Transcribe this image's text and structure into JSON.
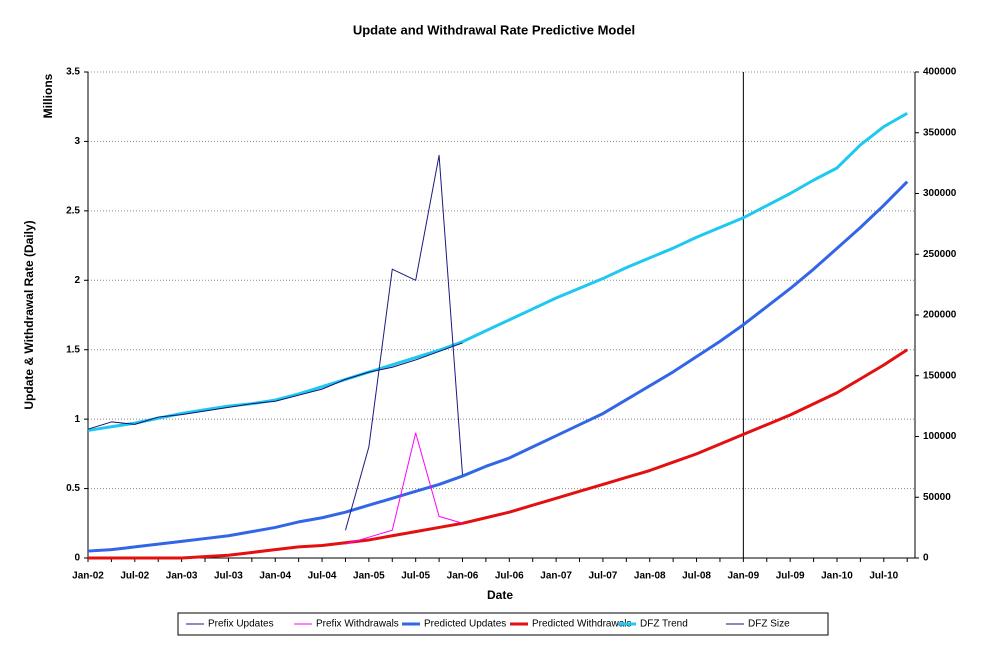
{
  "chart_data": {
    "type": "line",
    "title": "Update and Withdrawal Rate Predictive Model",
    "x_label": "Date",
    "y_label": "Update & Withdrawal Rate (Daily)",
    "y_unit_label": "Millions",
    "categories": [
      "Jan-02",
      null,
      "Jul-02",
      null,
      "Jan-03",
      null,
      "Jul-03",
      null,
      "Jan-04",
      null,
      "Jul-04",
      null,
      "Jan-05",
      null,
      "Jul-05",
      null,
      "Jan-06",
      null,
      "Jul-06",
      null,
      "Jan-07",
      null,
      "Jul-07",
      null,
      "Jan-08",
      null,
      "Jul-08",
      null,
      "Jan-09",
      null,
      "Jul-09",
      null,
      "Jan-10",
      null,
      "Jul-10",
      null
    ],
    "ylim": [
      0,
      3.5
    ],
    "yticks": [
      0,
      0.5,
      1,
      1.5,
      2,
      2.5,
      3,
      3.5
    ],
    "y2lim": [
      0,
      400000
    ],
    "y2ticks": [
      0,
      50000,
      100000,
      150000,
      200000,
      250000,
      300000,
      350000,
      400000
    ],
    "grid": true,
    "legend": "bottom",
    "vline_x": "Jan-09",
    "series": [
      {
        "name": "Prefix Updates",
        "color": "#1a1a80",
        "width": 1,
        "values": [
          null,
          null,
          null,
          null,
          null,
          null,
          null,
          null,
          null,
          null,
          null,
          0.2,
          0.8,
          2.08,
          2.0,
          2.9,
          0.6,
          null,
          null,
          null,
          null,
          null,
          null,
          null,
          null,
          null,
          null,
          null,
          null,
          null,
          null,
          null,
          null,
          null,
          null,
          null
        ]
      },
      {
        "name": "Prefix Withdrawals",
        "color": "#ff00ff",
        "width": 1,
        "values": [
          null,
          null,
          null,
          null,
          null,
          null,
          null,
          null,
          null,
          null,
          null,
          0.1,
          0.15,
          0.2,
          0.9,
          0.3,
          0.25,
          null,
          null,
          null,
          null,
          null,
          null,
          null,
          null,
          null,
          null,
          null,
          null,
          null,
          null,
          null,
          null,
          null,
          null,
          null
        ]
      },
      {
        "name": "Predicted Updates",
        "color": "#3366e6",
        "width": 3,
        "values": [
          0.05,
          0.06,
          0.08,
          0.1,
          0.12,
          0.14,
          0.16,
          0.19,
          0.22,
          0.26,
          0.29,
          0.33,
          0.38,
          0.43,
          0.48,
          0.53,
          0.59,
          0.66,
          0.72,
          0.8,
          0.88,
          0.96,
          1.04,
          1.14,
          1.24,
          1.34,
          1.45,
          1.56,
          1.68,
          1.81,
          1.94,
          2.08,
          2.23,
          2.38,
          2.54,
          2.71
        ]
      },
      {
        "name": "Predicted Withdrawals",
        "color": "#e31010",
        "width": 3,
        "values": [
          0,
          0,
          0,
          0,
          0,
          0.01,
          0.02,
          0.04,
          0.06,
          0.08,
          0.09,
          0.11,
          0.13,
          0.16,
          0.19,
          0.22,
          0.25,
          0.29,
          0.33,
          0.38,
          0.43,
          0.48,
          0.53,
          0.58,
          0.63,
          0.69,
          0.75,
          0.82,
          0.89,
          0.96,
          1.03,
          1.11,
          1.19,
          1.29,
          1.39,
          1.5
        ]
      },
      {
        "name": "DFZ Trend",
        "color": "#1ec8f0",
        "width": 3,
        "axis": "y2",
        "values": [
          105000,
          108000,
          111000,
          115000,
          119000,
          122000,
          125000,
          127000,
          130000,
          135000,
          141000,
          147000,
          153000,
          159000,
          165000,
          171000,
          178000,
          187000,
          196000,
          205000,
          214000,
          222000,
          230000,
          239000,
          247000,
          255000,
          264000,
          272000,
          280000,
          290000,
          300000,
          311000,
          321000,
          340000,
          355000,
          366000
        ]
      },
      {
        "name": "DFZ Size",
        "color": "#10106e",
        "width": 1,
        "axis": "y2",
        "values": [
          106000,
          112000,
          110000,
          116000,
          118000,
          121000,
          124000,
          127000,
          129000,
          134000,
          139000,
          147000,
          153000,
          157000,
          163000,
          170000,
          177000,
          null,
          null,
          null,
          null,
          null,
          null,
          null,
          null,
          null,
          null,
          null,
          null,
          null,
          null,
          null,
          null,
          null,
          null,
          null
        ]
      }
    ]
  }
}
